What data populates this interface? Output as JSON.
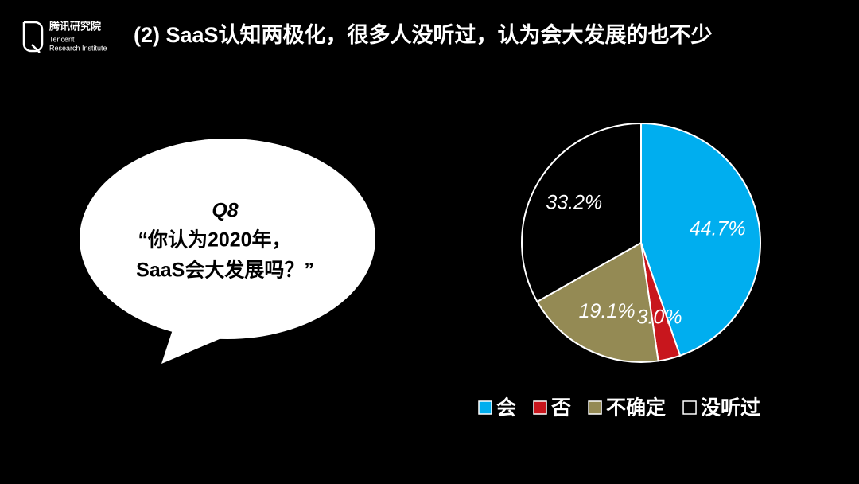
{
  "header": {
    "logo_cn": "腾讯研究院",
    "logo_en_1": "Tencent",
    "logo_en_2": "Research Institute",
    "title": "(2) SaaS认知两极化，很多人没听过，认为会大发展的也不少"
  },
  "bubble": {
    "lines": [
      "Q8",
      "“你认为2020年，",
      "SaaS会大发展吗？”"
    ]
  },
  "chart_data": {
    "type": "pie",
    "categories": [
      "会",
      "否",
      "不确定",
      "没听过"
    ],
    "values": [
      44.7,
      3.0,
      19.1,
      33.2
    ],
    "value_labels": [
      "44.7%",
      "3.0%",
      "19.1%",
      "33.2%"
    ],
    "colors": [
      "#00aeef",
      "#c8161d",
      "#948a54",
      "#000000"
    ]
  }
}
